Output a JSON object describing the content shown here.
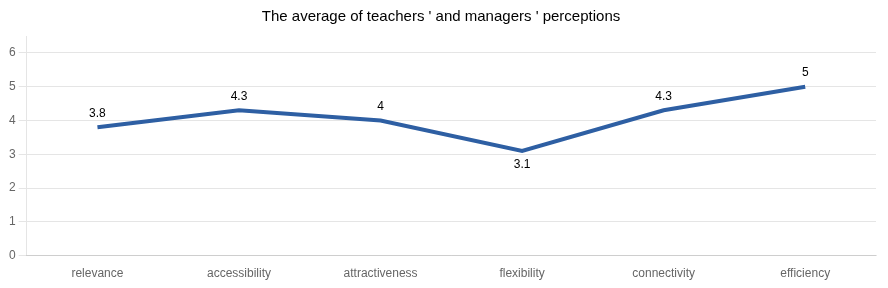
{
  "chart_data": {
    "type": "line",
    "title": "The average of teachers ' and managers ' perceptions",
    "categories": [
      "relevance",
      "accessibility",
      "attractiveness",
      "flexibility",
      "connectivity",
      "efficiency"
    ],
    "values": [
      3.8,
      4.3,
      4.0,
      3.1,
      4.3,
      5.0
    ],
    "color": "#2E5FA3",
    "ylim": [
      0,
      6.5
    ],
    "yticks": [
      0,
      1,
      2,
      3,
      4,
      5,
      6
    ],
    "grid": true,
    "data_labels": true
  }
}
